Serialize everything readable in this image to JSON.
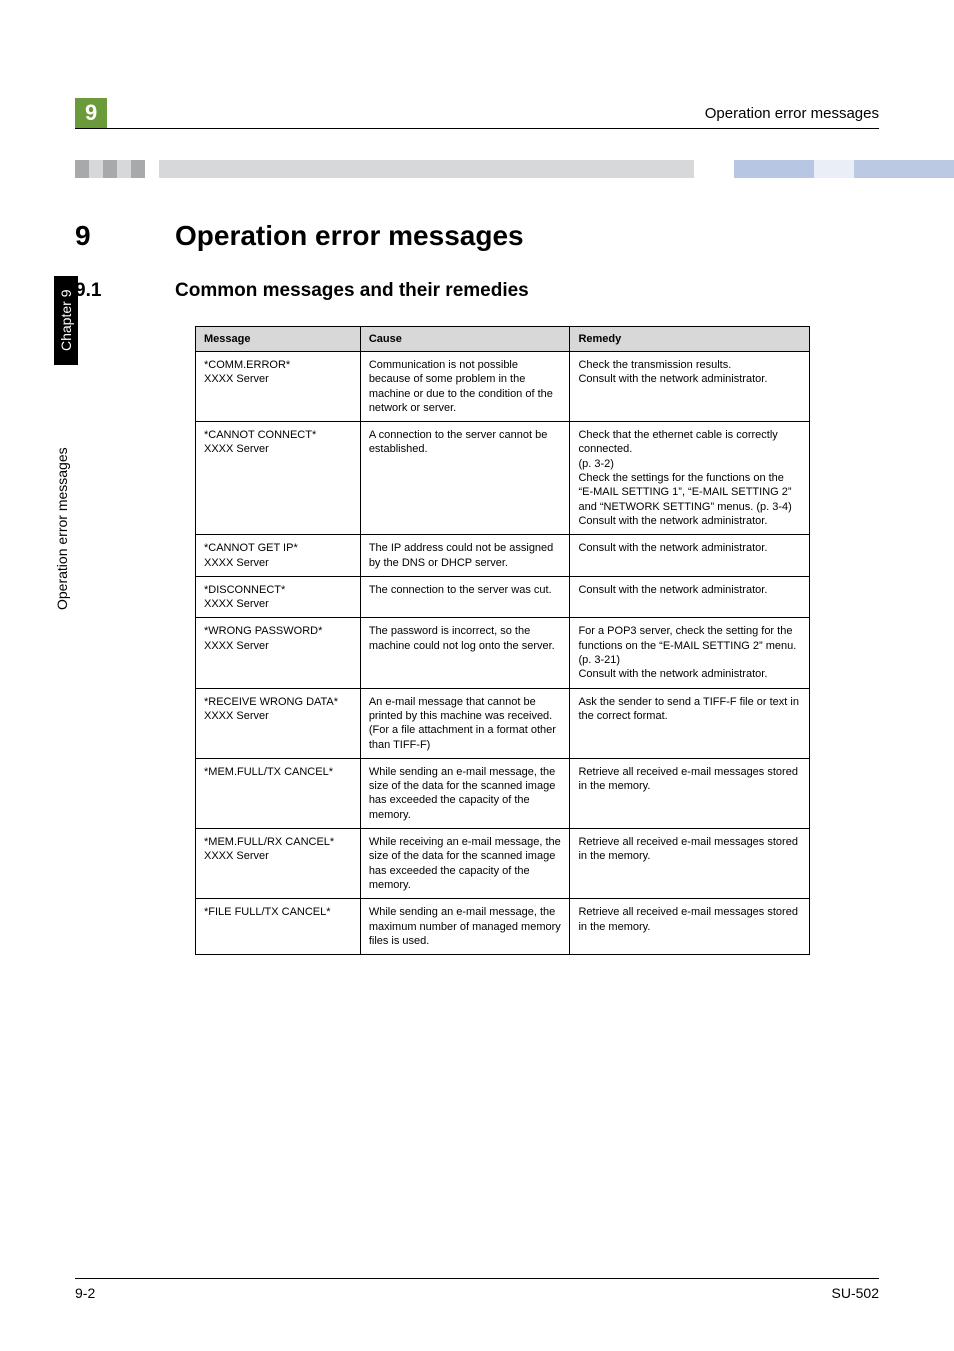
{
  "header": {
    "badge": "9",
    "running_head": "Operation error messages"
  },
  "sidebar": {
    "rotated_text": "Operation error messages",
    "chapter_label": "Chapter 9"
  },
  "section": {
    "number": "9",
    "title": "Operation error messages"
  },
  "subsection": {
    "number": "9.1",
    "title": "Common messages and their remedies"
  },
  "table": {
    "columns": [
      "Message",
      "Cause",
      "Remedy"
    ],
    "rows": [
      {
        "message": "*COMM.ERROR*\nXXXX Server",
        "cause": "Communication is not possible because of some problem in the machine or due to the condition of the network or server.",
        "remedy": "Check the transmission results.\nConsult with the network administrator."
      },
      {
        "message": "*CANNOT CONNECT*\nXXXX Server",
        "cause": "A connection to the server cannot be established.",
        "remedy": "Check that the ethernet cable is correctly connected.\n(p. 3-2)\nCheck the settings for the functions on the “E-MAIL SETTING 1”, “E-MAIL SETTING 2” and “NETWORK SETTING” menus. (p. 3-4)\nConsult with the network administrator."
      },
      {
        "message": "*CANNOT GET IP*\nXXXX Server",
        "cause": "The IP address could not be assigned by the DNS or DHCP server.",
        "remedy": "Consult with the network administrator."
      },
      {
        "message": "*DISCONNECT*\nXXXX Server",
        "cause": "The connection to the server was cut.",
        "remedy": "Consult with the network administrator."
      },
      {
        "message": "*WRONG PASSWORD*\nXXXX Server",
        "cause": "The password is incorrect, so the machine could not log onto the server.",
        "remedy": "For a POP3 server, check the setting for the functions on the “E-MAIL SETTING 2” menu.\n(p. 3-21)\nConsult with the network administrator."
      },
      {
        "message": "*RECEIVE WRONG DATA*\nXXXX Server",
        "cause": "An e-mail message that cannot be printed by this machine was received. (For a file attachment in a format other than TIFF-F)",
        "remedy": "Ask the sender to send a TIFF-F file or text in the correct format."
      },
      {
        "message": "*MEM.FULL/TX CANCEL*",
        "cause": "While sending an e-mail message, the size of the data for the scanned image has exceeded the capacity of the memory.",
        "remedy": "Retrieve all received e-mail messages stored in the memory."
      },
      {
        "message": "*MEM.FULL/RX CANCEL*\nXXXX Server",
        "cause": "While receiving an e-mail message, the size of the data for the scanned image has exceeded the capacity of the memory.",
        "remedy": "Retrieve all received e-mail messages stored in the memory."
      },
      {
        "message": "*FILE FULL/TX CANCEL*",
        "cause": "While sending an e-mail message, the maximum number of managed memory files is used.",
        "remedy": "Retrieve all received e-mail messages stored in the memory."
      }
    ]
  },
  "footer": {
    "page": "9-2",
    "doc": "SU-502"
  },
  "colors": {
    "badge_bg": "#6b9a3b",
    "th_bg": "#d8d8d8",
    "rule": "#000000"
  }
}
